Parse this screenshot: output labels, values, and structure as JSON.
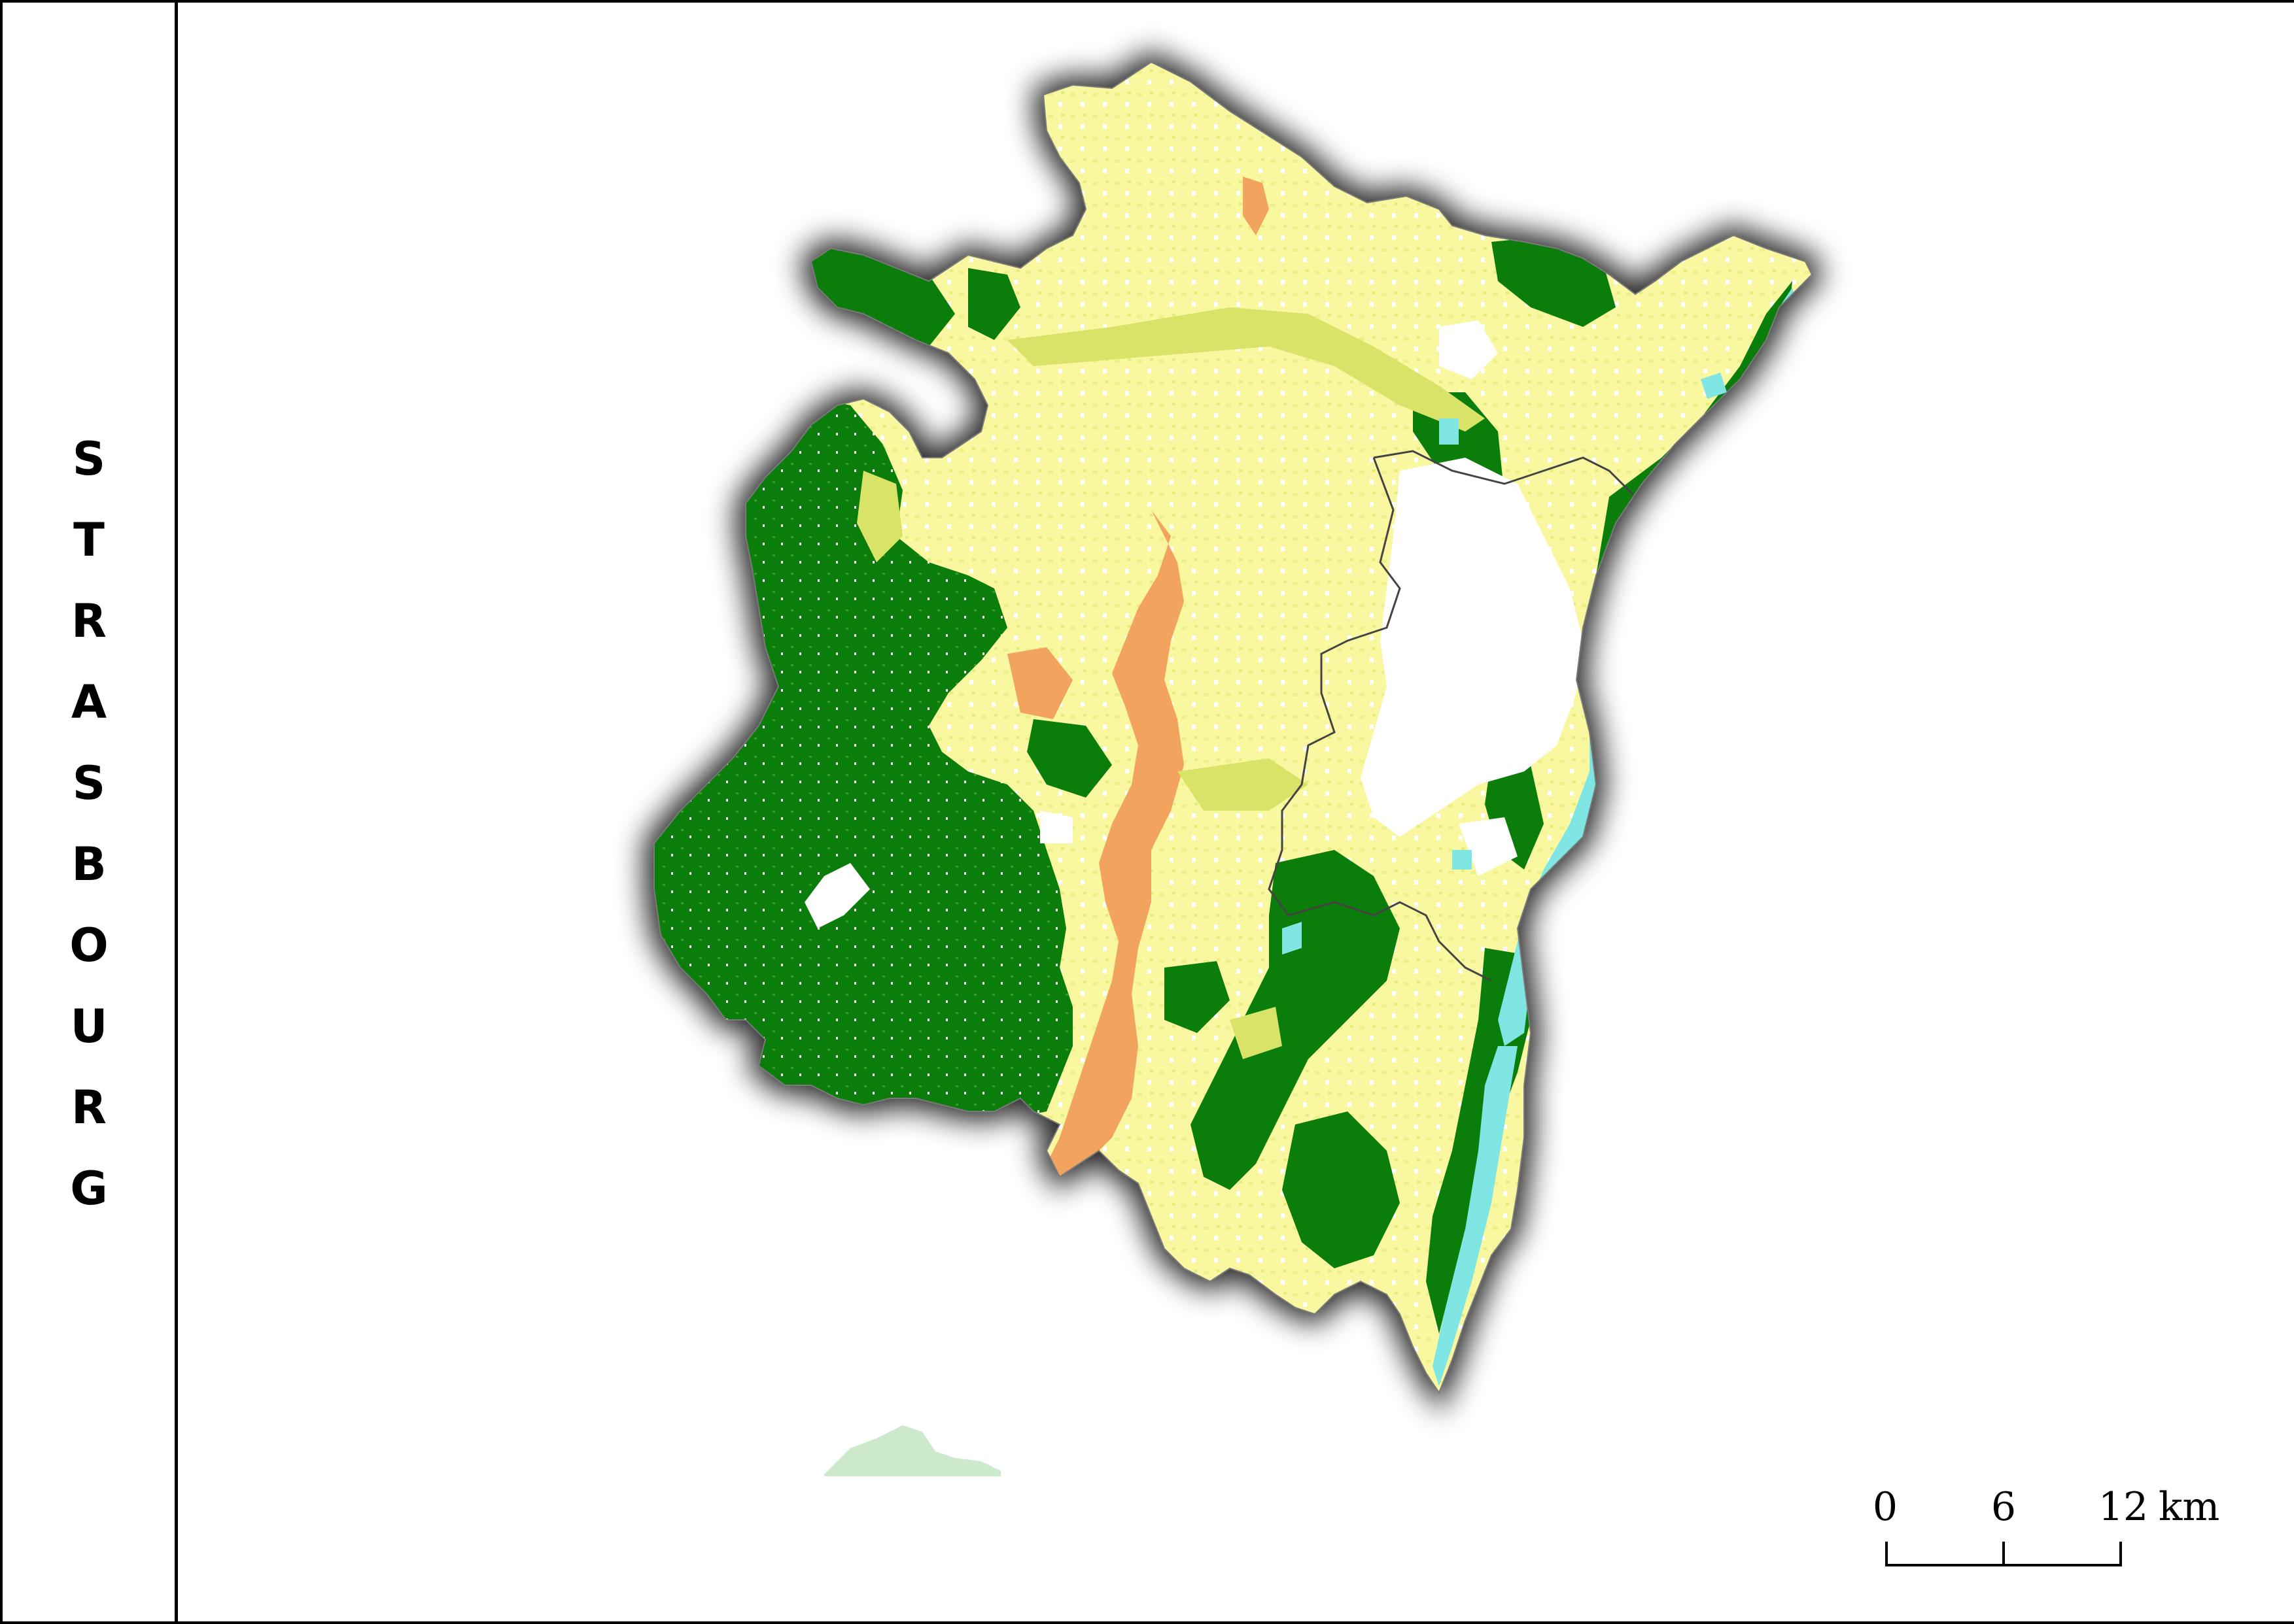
{
  "title": "STRASBOURG",
  "title_letters": [
    "S",
    "T",
    "R",
    "A",
    "S",
    "B",
    "O",
    "U",
    "R",
    "G"
  ],
  "scale_bar": {
    "ticks": [
      "0",
      "6",
      "12"
    ],
    "unit": "km"
  },
  "colors": {
    "agriculture": "#f9f7a0",
    "forest": "#0b7d0b",
    "vineyard": "#f2a35e",
    "grassland": "#d8e368",
    "water": "#7fe6e3",
    "urban": "#ffffff",
    "boundary": "#444444"
  }
}
